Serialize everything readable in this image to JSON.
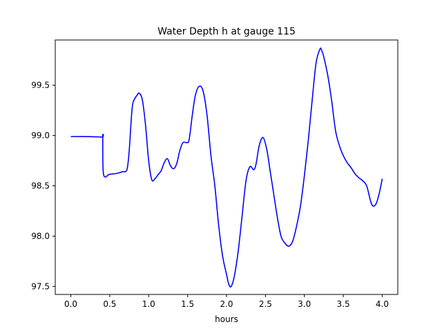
{
  "chart_data": {
    "type": "line",
    "title": "Water Depth h at gauge 115",
    "xlabel": "hours",
    "ylabel": "",
    "xlim": [
      -0.2,
      4.2
    ],
    "ylim": [
      97.42,
      99.95
    ],
    "xticks": [
      0.0,
      0.5,
      1.0,
      1.5,
      2.0,
      2.5,
      3.0,
      3.5,
      4.0
    ],
    "xtick_labels": [
      "0.0",
      "0.5",
      "1.0",
      "1.5",
      "2.0",
      "2.5",
      "3.0",
      "3.5",
      "4.0"
    ],
    "yticks": [
      97.5,
      98.0,
      98.5,
      99.0,
      99.5
    ],
    "ytick_labels": [
      "97.5",
      "98.0",
      "98.5",
      "99.0",
      "99.5"
    ],
    "grid": false,
    "legend": "none",
    "series": [
      {
        "color": "#0000ff",
        "x": [
          0.0,
          0.2,
          0.4,
          0.41,
          0.42,
          0.5,
          0.6,
          0.66,
          0.72,
          0.75,
          0.78,
          0.8,
          0.85,
          0.88,
          0.92,
          0.96,
          1.0,
          1.04,
          1.08,
          1.12,
          1.16,
          1.2,
          1.24,
          1.28,
          1.32,
          1.36,
          1.4,
          1.44,
          1.49,
          1.52,
          1.56,
          1.6,
          1.65,
          1.7,
          1.75,
          1.8,
          1.85,
          1.9,
          1.95,
          2.0,
          2.03,
          2.06,
          2.1,
          2.15,
          2.2,
          2.25,
          2.3,
          2.35,
          2.38,
          2.42,
          2.47,
          2.52,
          2.56,
          2.6,
          2.65,
          2.7,
          2.75,
          2.8,
          2.85,
          2.9,
          2.95,
          3.0,
          3.05,
          3.1,
          3.15,
          3.2,
          3.22,
          3.25,
          3.3,
          3.35,
          3.4,
          3.45,
          3.5,
          3.55,
          3.6,
          3.65,
          3.7,
          3.75,
          3.8,
          3.85,
          3.88,
          3.92,
          3.96,
          4.0
        ],
        "y": [
          98.99,
          98.99,
          98.985,
          98.985,
          98.615,
          98.615,
          98.625,
          98.64,
          98.66,
          98.85,
          99.2,
          99.33,
          99.4,
          99.42,
          99.35,
          99.1,
          98.75,
          98.56,
          98.57,
          98.61,
          98.65,
          98.73,
          98.77,
          98.7,
          98.67,
          98.72,
          98.85,
          98.93,
          98.93,
          98.96,
          99.2,
          99.4,
          99.49,
          99.44,
          99.2,
          98.8,
          98.5,
          98.1,
          97.8,
          97.62,
          97.52,
          97.5,
          97.6,
          97.85,
          98.2,
          98.55,
          98.69,
          98.66,
          98.72,
          98.9,
          98.98,
          98.85,
          98.65,
          98.45,
          98.2,
          98.0,
          97.93,
          97.9,
          97.95,
          98.1,
          98.3,
          98.6,
          98.95,
          99.35,
          99.72,
          99.86,
          99.85,
          99.78,
          99.6,
          99.35,
          99.05,
          98.9,
          98.8,
          98.73,
          98.68,
          98.62,
          98.58,
          98.55,
          98.5,
          98.35,
          98.3,
          98.32,
          98.42,
          98.57
        ]
      }
    ]
  }
}
